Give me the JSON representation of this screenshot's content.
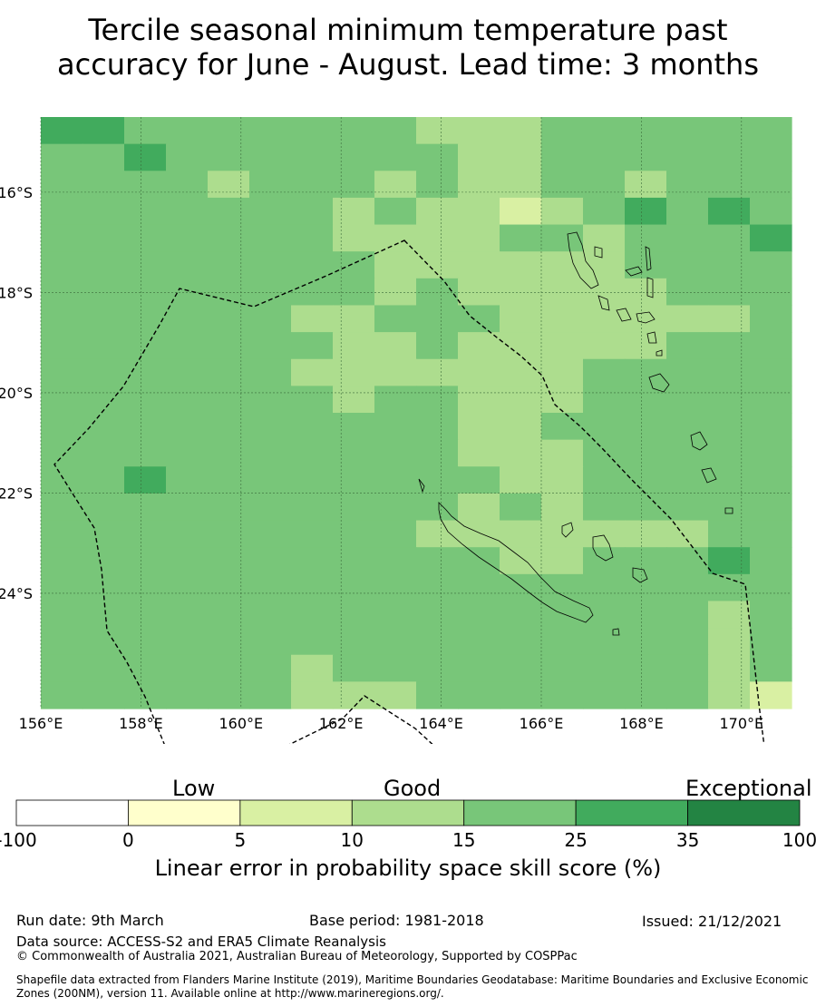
{
  "title_line1": "Tercile seasonal minimum temperature past",
  "title_line2": "accuracy for June - August. Lead time: 3 months",
  "map": {
    "lon_range": [
      156.0,
      171.0
    ],
    "lat_range": [
      -26.3,
      -14.5
    ],
    "lon_ticks": [
      "156°E",
      "158°E",
      "160°E",
      "162°E",
      "164°E",
      "166°E",
      "168°E",
      "170°E"
    ],
    "lon_tick_values": [
      156,
      158,
      160,
      162,
      164,
      166,
      168,
      170
    ],
    "lat_ticks": [
      "16°S",
      "18°S",
      "20°S",
      "22°S",
      "24°S"
    ],
    "lat_tick_values": [
      -16,
      -18,
      -20,
      -22,
      -24
    ],
    "background_category": 4,
    "overrides": [
      [
        0,
        0,
        5
      ],
      [
        0,
        1,
        5
      ],
      [
        0,
        2,
        4
      ],
      [
        0,
        3,
        4
      ],
      [
        0,
        4,
        4
      ],
      [
        0,
        5,
        4
      ],
      [
        0,
        6,
        4
      ],
      [
        0,
        7,
        4
      ],
      [
        0,
        8,
        4
      ],
      [
        0,
        9,
        3
      ],
      [
        0,
        10,
        3
      ],
      [
        0,
        11,
        3
      ],
      [
        0,
        12,
        4
      ],
      [
        1,
        2,
        5
      ],
      [
        1,
        10,
        3
      ],
      [
        1,
        11,
        3
      ],
      [
        2,
        4,
        3
      ],
      [
        2,
        8,
        3
      ],
      [
        2,
        10,
        3
      ],
      [
        2,
        11,
        3
      ],
      [
        2,
        14,
        3
      ],
      [
        3,
        7,
        3
      ],
      [
        3,
        8,
        4
      ],
      [
        3,
        9,
        3
      ],
      [
        3,
        10,
        3
      ],
      [
        3,
        11,
        2
      ],
      [
        3,
        12,
        3
      ],
      [
        3,
        14,
        5
      ],
      [
        3,
        16,
        5
      ],
      [
        4,
        7,
        3
      ],
      [
        4,
        8,
        3
      ],
      [
        4,
        9,
        3
      ],
      [
        4,
        10,
        3
      ],
      [
        4,
        13,
        3
      ],
      [
        4,
        17,
        5
      ],
      [
        5,
        8,
        3
      ],
      [
        5,
        9,
        3
      ],
      [
        5,
        10,
        3
      ],
      [
        5,
        11,
        3
      ],
      [
        5,
        12,
        3
      ],
      [
        5,
        13,
        3
      ],
      [
        6,
        8,
        3
      ],
      [
        6,
        10,
        3
      ],
      [
        6,
        11,
        3
      ],
      [
        6,
        12,
        3
      ],
      [
        6,
        13,
        3
      ],
      [
        6,
        14,
        3
      ],
      [
        7,
        6,
        3
      ],
      [
        7,
        7,
        3
      ],
      [
        7,
        8,
        4
      ],
      [
        7,
        11,
        3
      ],
      [
        7,
        12,
        3
      ],
      [
        7,
        13,
        3
      ],
      [
        7,
        14,
        3
      ],
      [
        7,
        15,
        3
      ],
      [
        7,
        16,
        3
      ],
      [
        7,
        18,
        3
      ],
      [
        8,
        7,
        3
      ],
      [
        8,
        8,
        3
      ],
      [
        8,
        10,
        3
      ],
      [
        8,
        11,
        3
      ],
      [
        8,
        12,
        3
      ],
      [
        8,
        13,
        3
      ],
      [
        8,
        14,
        3
      ],
      [
        8,
        18,
        3
      ],
      [
        9,
        6,
        3
      ],
      [
        9,
        7,
        3
      ],
      [
        9,
        8,
        3
      ],
      [
        9,
        9,
        3
      ],
      [
        9,
        10,
        3
      ],
      [
        9,
        11,
        3
      ],
      [
        9,
        12,
        3
      ],
      [
        10,
        7,
        3
      ],
      [
        10,
        10,
        3
      ],
      [
        10,
        11,
        3
      ],
      [
        10,
        12,
        3
      ],
      [
        10,
        18,
        3
      ],
      [
        11,
        10,
        3
      ],
      [
        11,
        11,
        3
      ],
      [
        11,
        18,
        3
      ],
      [
        12,
        10,
        3
      ],
      [
        12,
        11,
        3
      ],
      [
        12,
        12,
        3
      ],
      [
        13,
        2,
        5
      ],
      [
        13,
        11,
        3
      ],
      [
        13,
        12,
        3
      ],
      [
        14,
        10,
        3
      ],
      [
        14,
        12,
        3
      ],
      [
        15,
        9,
        3
      ],
      [
        15,
        10,
        3
      ],
      [
        15,
        11,
        3
      ],
      [
        15,
        12,
        3
      ],
      [
        15,
        13,
        3
      ],
      [
        15,
        14,
        3
      ],
      [
        15,
        15,
        3
      ],
      [
        16,
        11,
        3
      ],
      [
        16,
        12,
        3
      ],
      [
        16,
        16,
        5
      ],
      [
        18,
        16,
        3
      ],
      [
        19,
        16,
        3
      ],
      [
        20,
        6,
        3
      ],
      [
        20,
        16,
        3
      ],
      [
        21,
        6,
        3
      ],
      [
        21,
        7,
        3
      ],
      [
        21,
        8,
        3
      ],
      [
        21,
        16,
        3
      ],
      [
        21,
        17,
        2
      ]
    ],
    "grid_rows": 22,
    "grid_cols": 18,
    "cell_lon": 1.0,
    "cell_lat": 0.5
  },
  "legend": {
    "categories": [
      "Low",
      "Good",
      "Exceptional"
    ],
    "ticks": [
      "-100",
      "0",
      "5",
      "10",
      "15",
      "25",
      "35",
      "100"
    ],
    "colors": [
      "#ffffff",
      "#ffffcc",
      "#d9f0a3",
      "#addd8e",
      "#78c679",
      "#41ab5d",
      "#238443"
    ],
    "title": "Linear error in probability space skill score (%)"
  },
  "footer": {
    "run_date": "Run date: 9th March",
    "base_period": "Base period: 1981-2018",
    "issued": "Issued: 21/12/2021",
    "data_source": "Data source: ACCESS-S2 and ERA5 Climate Reanalysis",
    "copyright": "© Commonwealth of Australia 2021, Australian Bureau of Meteorology, Supported by COSPPac",
    "shapefile_line1": "Shapefile data extracted from Flanders Marine Institute (2019), Maritime Boundaries Geodatabase: Maritime Boundaries and Exclusive Economic",
    "shapefile_line2": "Zones (200NM), version 11. Available online at http://www.marineregions.org/."
  }
}
